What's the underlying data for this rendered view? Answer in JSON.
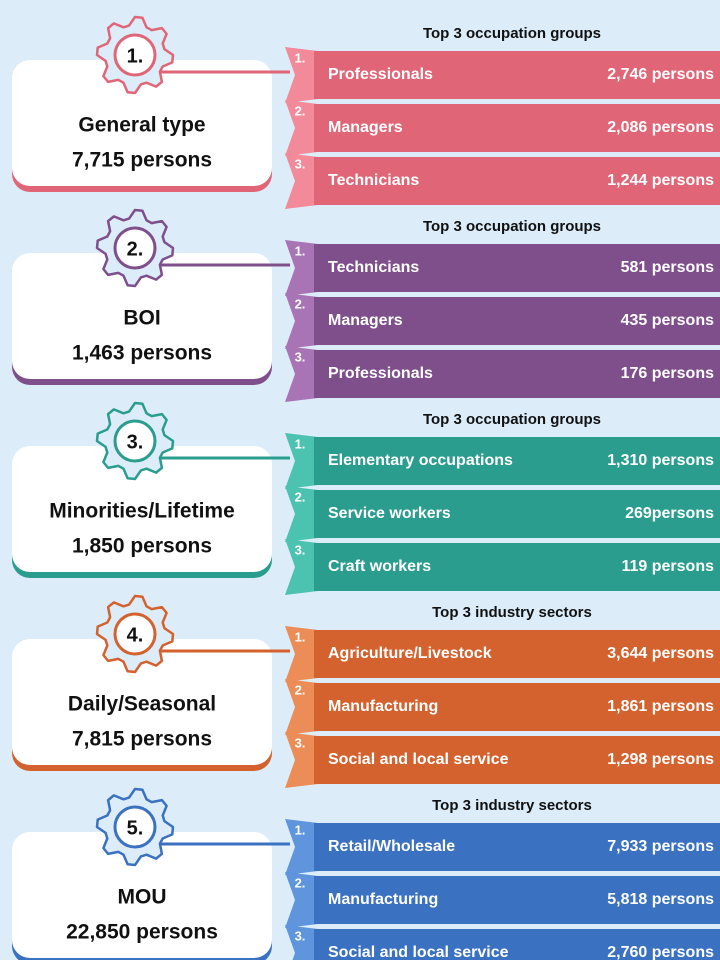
{
  "sections": [
    {
      "number": "1.",
      "title": "General type",
      "total": "7,715 persons",
      "heading": "Top 3 occupation groups",
      "color": "#e06677",
      "tab": "#f28a9a",
      "items": [
        {
          "rank": "1.",
          "name": "Professionals",
          "value": "2,746 persons"
        },
        {
          "rank": "2.",
          "name": "Managers",
          "value": "2,086 persons"
        },
        {
          "rank": "3.",
          "name": "Technicians",
          "value": "1,244 persons"
        }
      ]
    },
    {
      "number": "2.",
      "title": "BOI",
      "total": "1,463 persons",
      "heading": "Top 3 occupation groups",
      "color": "#7f4f8c",
      "tab": "#a874b6",
      "items": [
        {
          "rank": "1.",
          "name": "Technicians",
          "value": "581 persons"
        },
        {
          "rank": "2.",
          "name": "Managers",
          "value": "435 persons"
        },
        {
          "rank": "3.",
          "name": "Professionals",
          "value": "176 persons"
        }
      ]
    },
    {
      "number": "3.",
      "title": "Minorities/Lifetime",
      "total": "1,850 persons",
      "heading": "Top 3 occupation groups",
      "color": "#2a9d8f",
      "tab": "#4cc2b1",
      "items": [
        {
          "rank": "1.",
          "name": "Elementary occupations",
          "value": "1,310 persons"
        },
        {
          "rank": "2.",
          "name": "Service workers",
          "value": "269persons"
        },
        {
          "rank": "3.",
          "name": "Craft workers",
          "value": "119 persons"
        }
      ]
    },
    {
      "number": "4.",
      "title": "Daily/Seasonal",
      "total": "7,815 persons",
      "heading": "Top 3 industry sectors",
      "color": "#d3622e",
      "tab": "#ec8d58",
      "items": [
        {
          "rank": "1.",
          "name": "Agriculture/Livestock",
          "value": "3,644 persons"
        },
        {
          "rank": "2.",
          "name": "Manufacturing",
          "value": "1,861 persons"
        },
        {
          "rank": "3.",
          "name": "Social and local service",
          "value": "1,298 persons"
        }
      ]
    },
    {
      "number": "5.",
      "title": "MOU",
      "total": "22,850 persons",
      "heading": "Top 3 industry sectors",
      "color": "#3a71c0",
      "tab": "#5e95dd",
      "items": [
        {
          "rank": "1.",
          "name": "Retail/Wholesale",
          "value": "7,933 persons"
        },
        {
          "rank": "2.",
          "name": "Manufacturing",
          "value": "5,818 persons"
        },
        {
          "rank": "3.",
          "name": "Social and local service",
          "value": "2,760 persons"
        }
      ]
    }
  ]
}
